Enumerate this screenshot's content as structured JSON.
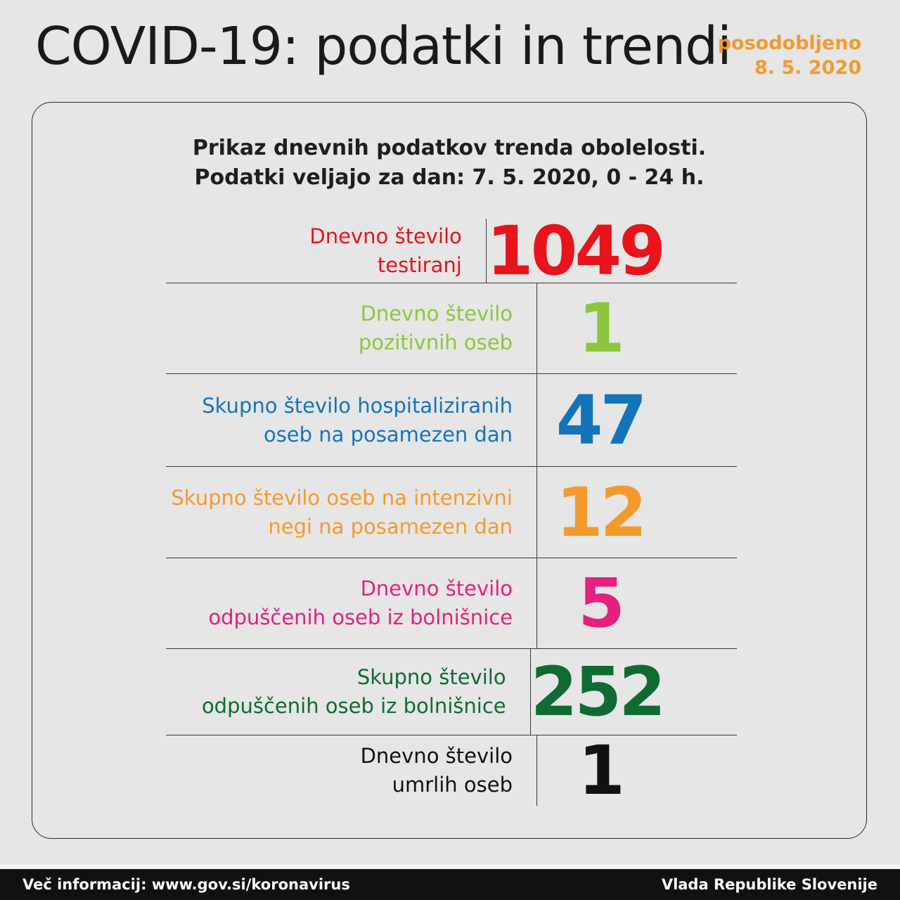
{
  "header": {
    "title": "COVID-19: podatki in trendi",
    "updated_label": "posodobljeno",
    "updated_date": "8. 5. 2020",
    "updated_color": "#f39a2e"
  },
  "intro": {
    "line1": "Prikaz dnevnih podatkov trenda obolelosti.",
    "line2": "Podatki veljajo za dan: 7. 5. 2020, 0 - 24 h."
  },
  "rows": [
    {
      "label_line1": "Dnevno število",
      "label_line2": "testiranj",
      "value": "1049",
      "color": "#e8131b"
    },
    {
      "label_line1": "Dnevno število",
      "label_line2": "pozitivnih oseb",
      "value": "1",
      "color": "#8cc63e"
    },
    {
      "label_line1": "Skupno število hospitaliziranih",
      "label_line2": "oseb na posamezen dan",
      "value": "47",
      "color": "#1474bb"
    },
    {
      "label_line1": "Skupno število oseb na intenzivni",
      "label_line2": "negi na posamezen dan",
      "value": "12",
      "color": "#f39a2e"
    },
    {
      "label_line1": "Dnevno število",
      "label_line2": "odpuščenih oseb iz bolnišnice",
      "value": "5",
      "color": "#e5207e"
    },
    {
      "label_line1": "Skupno število",
      "label_line2": "odpuščenih oseb iz bolnišnice",
      "value": "252",
      "color": "#0f6b32"
    },
    {
      "label_line1": "Dnevno število",
      "label_line2": "umrlih oseb",
      "value": "1",
      "color": "#111111"
    }
  ],
  "footer": {
    "left": "Več informacij: www.gov.si/koronavirus",
    "right": "Vlada Republike Slovenije"
  }
}
